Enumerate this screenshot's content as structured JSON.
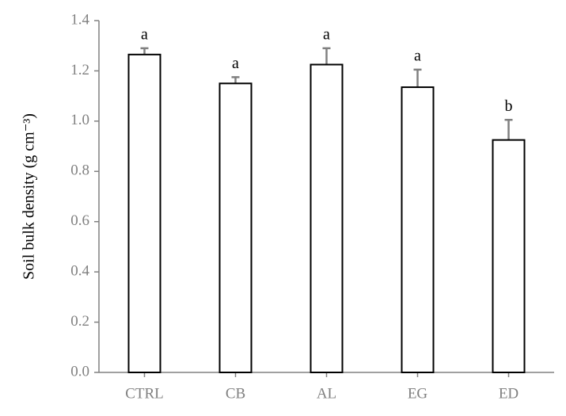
{
  "chart_data": {
    "type": "bar",
    "y_label": "Soil bulk density (g cm⁻³)",
    "categories": [
      "CTRL",
      "CB",
      "AL",
      "EG",
      "ED"
    ],
    "values": [
      1.265,
      1.15,
      1.225,
      1.135,
      0.925
    ],
    "errors": [
      0.025,
      0.025,
      0.065,
      0.07,
      0.08
    ],
    "letters": [
      "a",
      "a",
      "a",
      "a",
      "b"
    ],
    "color": "#ffffff",
    "edge_color": "#000000",
    "error_color": "#808080",
    "ylim": [
      0,
      1.4
    ],
    "yticks": [
      {
        "value": 0,
        "label": "0.0"
      },
      {
        "value": 0.2,
        "label": "0.2"
      },
      {
        "value": 0.4,
        "label": "0.4"
      },
      {
        "value": 0.6,
        "label": "0.6"
      },
      {
        "value": 0.8,
        "label": "0.8"
      },
      {
        "value": 1.0,
        "label": "1.0"
      },
      {
        "value": 1.2,
        "label": "1.2"
      },
      {
        "value": 1.4,
        "label": "1.4"
      }
    ],
    "grid": false
  }
}
